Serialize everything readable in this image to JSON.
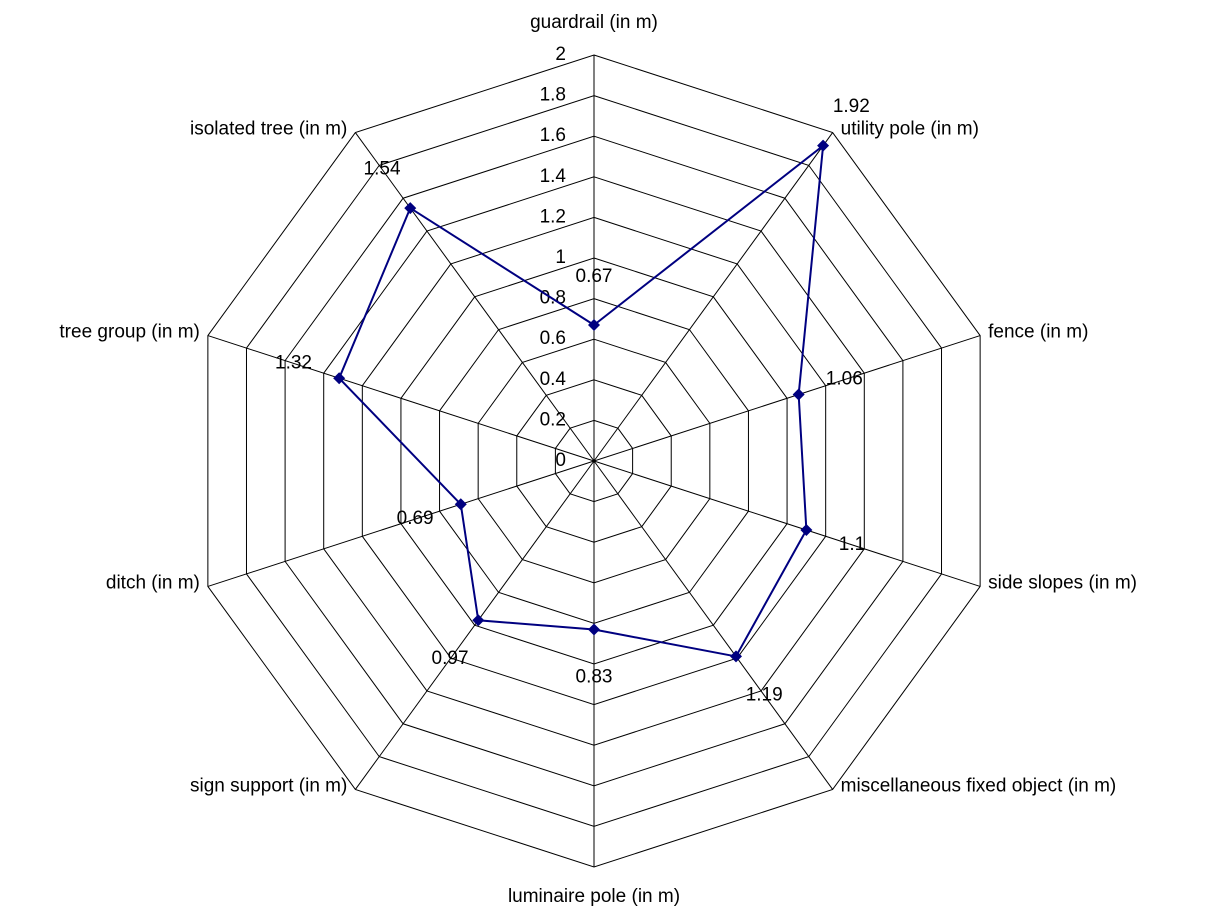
{
  "chart_data": {
    "type": "radar",
    "categories": [
      "guardrail (in m)",
      "utility pole (in m)",
      "fence (in m)",
      "side slopes (in m)",
      "miscellaneous fixed object (in m)",
      "luminaire pole (in m)",
      "sign support (in m)",
      "ditch (in m)",
      "tree group (in m)",
      "isolated tree (in m)"
    ],
    "values": [
      0.67,
      1.92,
      1.06,
      1.1,
      1.19,
      0.83,
      0.97,
      0.69,
      1.32,
      1.54
    ],
    "color": "#000080",
    "ylim": [
      0,
      2
    ],
    "yticks": [
      0,
      0.2,
      0.4,
      0.6,
      0.8,
      1,
      1.2,
      1.4,
      1.6,
      1.8,
      2
    ],
    "grid": true
  }
}
